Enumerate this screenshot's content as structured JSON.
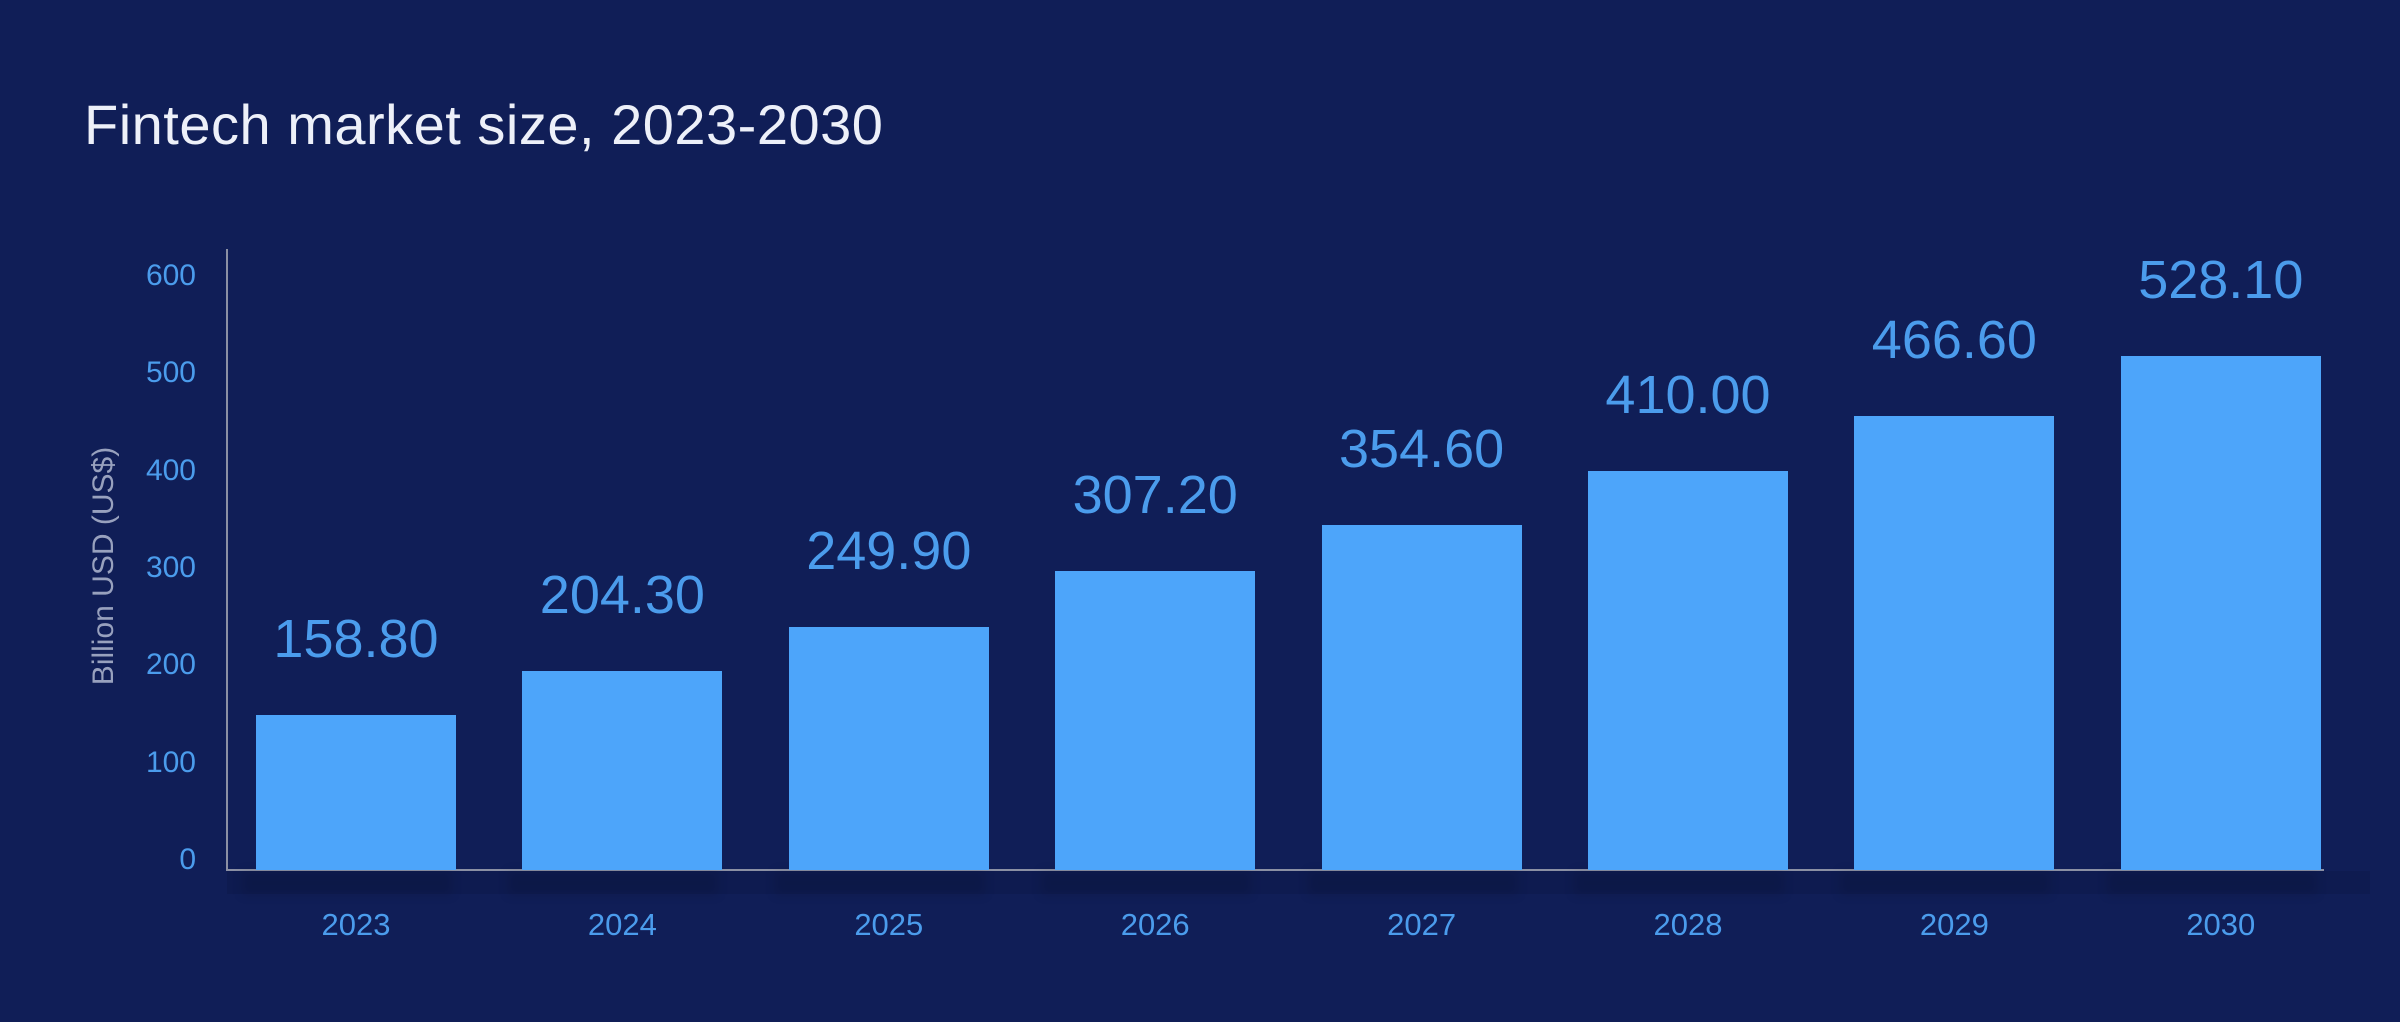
{
  "title": "Fintech market size, 2023-2030",
  "chart_data": {
    "type": "bar",
    "title": "Fintech market size, 2023-2030",
    "categories": [
      "2023",
      "2024",
      "2025",
      "2026",
      "2027",
      "2028",
      "2029",
      "2030"
    ],
    "values": [
      158.8,
      204.3,
      249.9,
      307.2,
      354.6,
      410.0,
      466.6,
      528.1
    ],
    "value_labels": [
      "158.80",
      "204.30",
      "249.90",
      "307.20",
      "354.60",
      "410.00",
      "466.60",
      "528.10"
    ],
    "xlabel": "",
    "ylabel": "Billion USD (US$)",
    "ylim": [
      0,
      600
    ],
    "yticks": [
      0,
      100,
      200,
      300,
      400,
      500,
      600
    ],
    "grid": false,
    "legend": false
  },
  "colors": {
    "background": "#101E57",
    "bar": "#4DA5FA",
    "value_label": "#4B9CEC",
    "tick_label": "#4B9CEC",
    "year_label": "#4B9CEC",
    "axis_line": "#8B90A4",
    "title": "#EDF0F9",
    "y_axis_title": "#98A1BE"
  }
}
